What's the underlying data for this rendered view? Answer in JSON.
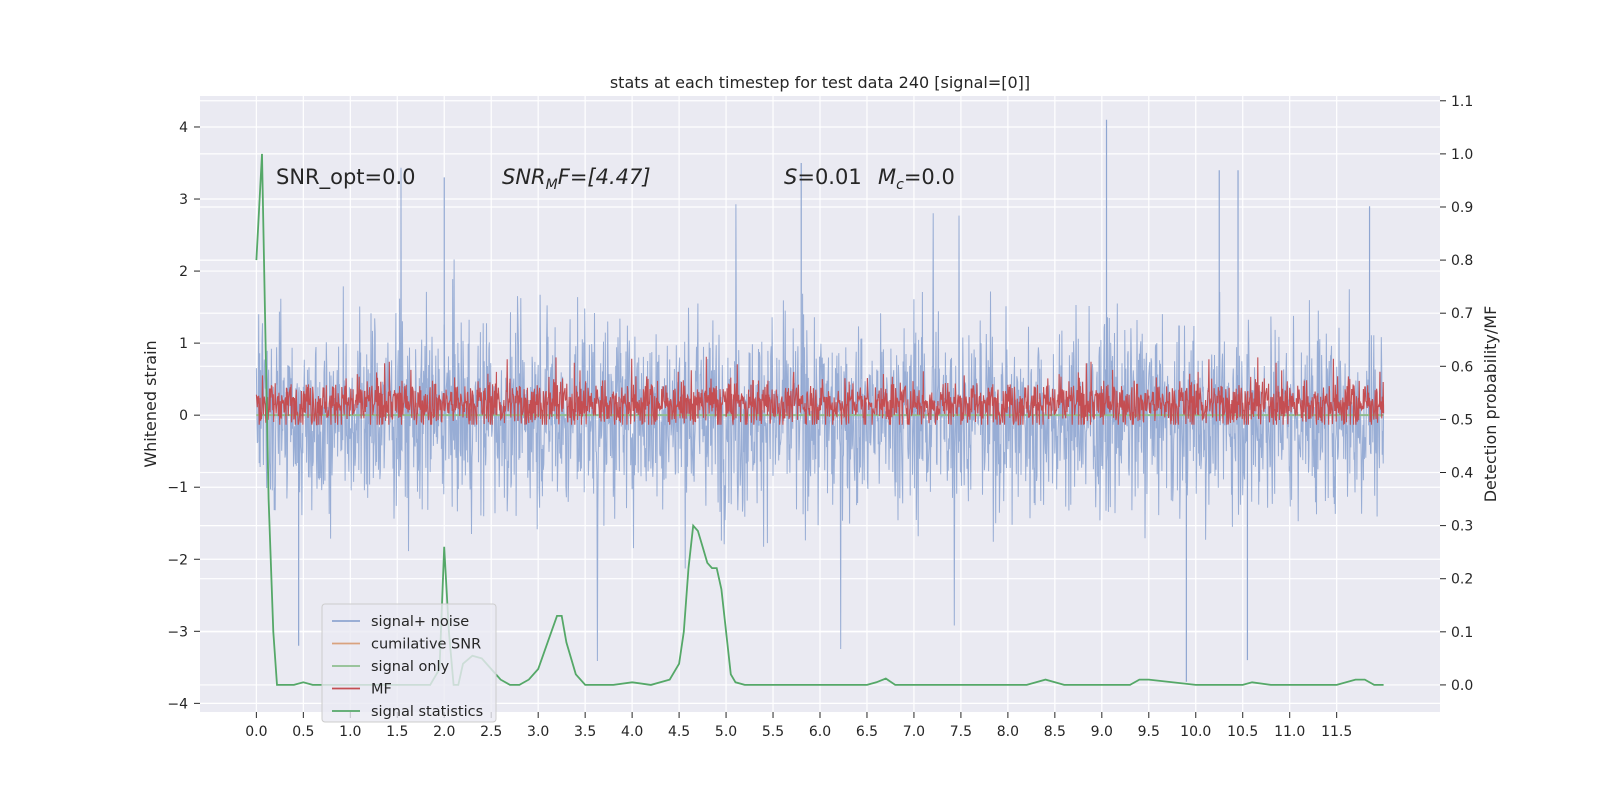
{
  "chart_data": {
    "type": "line",
    "title": "stats at each timestep for test data 240 [signal=[0]]",
    "ylabel_left": "Whitened strain",
    "ylabel_right": "Detection probability/MF",
    "xlim": [
      -0.6,
      12.6
    ],
    "ylim_left": [
      -4.12,
      4.43
    ],
    "ylim_right": [
      -0.051,
      1.109
    ],
    "x_ticks": [
      "0.0",
      "0.5",
      "1.0",
      "1.5",
      "2.0",
      "2.5",
      "3.0",
      "3.5",
      "4.0",
      "4.5",
      "5.0",
      "5.5",
      "6.0",
      "6.5",
      "7.0",
      "7.5",
      "8.0",
      "8.5",
      "9.0",
      "9.5",
      "10.0",
      "10.5",
      "11.0",
      "11.5"
    ],
    "y_ticks_left": [
      "4",
      "3",
      "2",
      "1",
      "0",
      "−1",
      "−2",
      "−3",
      "−4"
    ],
    "y_ticks_right": [
      "1.1",
      "1.0",
      "0.9",
      "0.8",
      "0.7",
      "0.6",
      "0.5",
      "0.4",
      "0.3",
      "0.2",
      "0.1",
      "0.0"
    ],
    "grid": true,
    "annotations": {
      "snr_opt": "SNR_opt=0.0",
      "snr_mf_base": "SNR",
      "snr_mf_sub": "M",
      "snr_mf_rest": "F=[4.47]",
      "s_base": "S",
      "s_rest": "=0.01",
      "mc_base": "M",
      "mc_sub": "c",
      "mc_rest": "=0.0"
    },
    "series": [
      {
        "name": "signal+ noise",
        "axis": "left",
        "color": "#8fa6d1",
        "kind": "noise",
        "x_range": [
          0,
          12
        ],
        "amplitude_sigma": 1.0,
        "max": 4.1,
        "min": -3.7
      },
      {
        "name": "cumilative SNR",
        "axis": "left",
        "color": "#d9a27e",
        "kind": "flat",
        "values_y": 0
      },
      {
        "name": "signal only",
        "axis": "left",
        "color": "#8fbf8f",
        "kind": "flat",
        "values_y": 0
      },
      {
        "name": "MF",
        "axis": "right",
        "color": "#c44e52",
        "kind": "band",
        "x_range": [
          0,
          12
        ],
        "mean": 0.53,
        "spread": 0.06,
        "max": 0.6
      },
      {
        "name": "signal statistics",
        "axis": "right",
        "color": "#55a868",
        "kind": "curve",
        "x": [
          0.0,
          0.03,
          0.06,
          0.09,
          0.13,
          0.18,
          0.22,
          0.3,
          0.4,
          0.5,
          0.6,
          0.8,
          1.0,
          1.3,
          1.6,
          1.85,
          1.95,
          2.0,
          2.05,
          2.1,
          2.15,
          2.2,
          2.3,
          2.4,
          2.5,
          2.6,
          2.7,
          2.8,
          2.9,
          3.0,
          3.1,
          3.2,
          3.25,
          3.3,
          3.4,
          3.5,
          3.6,
          3.8,
          4.0,
          4.2,
          4.4,
          4.5,
          4.55,
          4.6,
          4.65,
          4.7,
          4.75,
          4.8,
          4.85,
          4.9,
          4.95,
          5.0,
          5.05,
          5.1,
          5.2,
          5.5,
          6.0,
          6.5,
          6.6,
          6.7,
          6.8,
          7.0,
          7.5,
          8.0,
          8.2,
          8.3,
          8.4,
          8.6,
          9.0,
          9.3,
          9.4,
          9.5,
          10.0,
          10.5,
          10.6,
          10.8,
          11.0,
          11.5,
          11.7,
          11.8,
          11.9,
          12.0
        ],
        "y": [
          0.8,
          0.9,
          1.0,
          0.72,
          0.35,
          0.1,
          0.0,
          0.0,
          0.0,
          0.005,
          0.0,
          0.0,
          0.0,
          0.0,
          0.0,
          0.0,
          0.03,
          0.26,
          0.1,
          0.0,
          0.0,
          0.04,
          0.055,
          0.05,
          0.03,
          0.01,
          0.0,
          0.0,
          0.01,
          0.03,
          0.08,
          0.13,
          0.13,
          0.08,
          0.02,
          0.0,
          0.0,
          0.0,
          0.005,
          0.0,
          0.01,
          0.04,
          0.1,
          0.22,
          0.3,
          0.29,
          0.26,
          0.23,
          0.22,
          0.22,
          0.18,
          0.1,
          0.02,
          0.005,
          0.0,
          0.0,
          0.0,
          0.0,
          0.005,
          0.012,
          0.0,
          0.0,
          0.0,
          0.0,
          0.0,
          0.005,
          0.01,
          0.0,
          0.0,
          0.0,
          0.01,
          0.01,
          0.0,
          0.0,
          0.005,
          0.0,
          0.0,
          0.0,
          0.01,
          0.01,
          0.0,
          0.0
        ]
      }
    ]
  }
}
